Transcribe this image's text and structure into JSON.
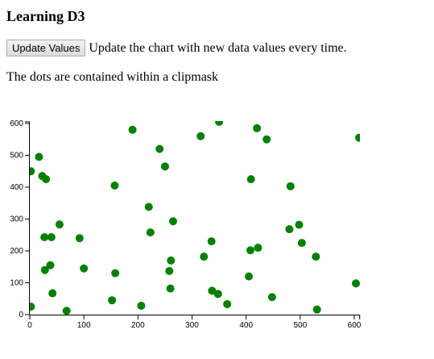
{
  "page": {
    "heading": "Learning D3",
    "update_button_label": "Update Values",
    "update_description": "Update the chart with new data values every time.",
    "clip_note": "The dots are contained within a clipmask"
  },
  "chart_data": {
    "type": "scatter",
    "title": "",
    "xlabel": "",
    "ylabel": "",
    "xlim": [
      0,
      610
    ],
    "ylim": [
      0,
      605
    ],
    "xticks": [
      0,
      100,
      200,
      300,
      400,
      500,
      600
    ],
    "yticks": [
      0,
      100,
      200,
      300,
      400,
      500,
      600
    ],
    "grid": false,
    "dot_color": "#008000",
    "points": [
      [
        2,
        450
      ],
      [
        2,
        25
      ],
      [
        17,
        495
      ],
      [
        23,
        435
      ],
      [
        27,
        243
      ],
      [
        30,
        425
      ],
      [
        28,
        140
      ],
      [
        38,
        155
      ],
      [
        40,
        243
      ],
      [
        42,
        67
      ],
      [
        55,
        283
      ],
      [
        68,
        12
      ],
      [
        92,
        240
      ],
      [
        100,
        145
      ],
      [
        152,
        45
      ],
      [
        157,
        405
      ],
      [
        158,
        130
      ],
      [
        190,
        580
      ],
      [
        206,
        28
      ],
      [
        220,
        338
      ],
      [
        223,
        258
      ],
      [
        240,
        520
      ],
      [
        250,
        465
      ],
      [
        258,
        137
      ],
      [
        261,
        170
      ],
      [
        260,
        82
      ],
      [
        265,
        293
      ],
      [
        316,
        560
      ],
      [
        322,
        182
      ],
      [
        336,
        230
      ],
      [
        337,
        75
      ],
      [
        348,
        65
      ],
      [
        350,
        605
      ],
      [
        365,
        33
      ],
      [
        405,
        120
      ],
      [
        408,
        202
      ],
      [
        409,
        425
      ],
      [
        420,
        585
      ],
      [
        422,
        210
      ],
      [
        438,
        550
      ],
      [
        448,
        55
      ],
      [
        480,
        268
      ],
      [
        482,
        403
      ],
      [
        498,
        282
      ],
      [
        503,
        225
      ],
      [
        529,
        182
      ],
      [
        531,
        16
      ],
      [
        603,
        98
      ],
      [
        609,
        555
      ]
    ]
  }
}
